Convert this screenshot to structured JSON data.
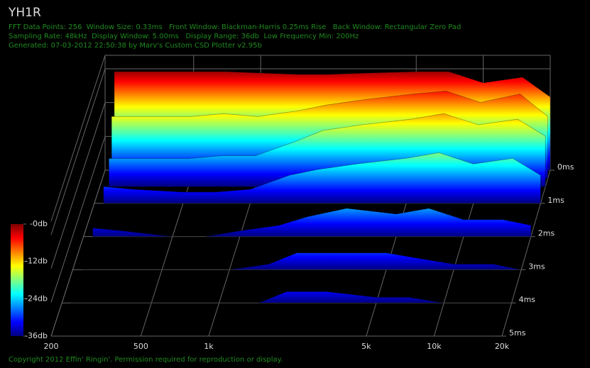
{
  "chart_data": {
    "type": "waterfall",
    "title": "YH1R",
    "info_lines": [
      "FFT Data Points: 256  Window Size: 0.33ms   Front Window: Blackman-Harris 0.25ms Rise   Back Window: Rectangular Zero Pad",
      "Sampling Rate: 48kHz  Display Window: 5.00ms   Display Range: 36db  Low Frequency Min: 200Hz",
      "Generated: 07-03-2012 22:50:38 by Marv's Custom CSD Plotter v2.95b"
    ],
    "footer": "Copyright 2012 Effin' Ringin'. Permission required for reproduction or display.",
    "x": [
      220,
      300,
      500,
      700,
      1000,
      1500,
      2000,
      3000,
      5000,
      7000,
      10000,
      15000,
      20000
    ],
    "xlim": [
      200,
      20000
    ],
    "xscale": "log",
    "xticks": [
      {
        "value": 200,
        "label": "200"
      },
      {
        "value": 500,
        "label": "500"
      },
      {
        "value": 1000,
        "label": "1k"
      },
      {
        "value": 5000,
        "label": "5k"
      },
      {
        "value": 10000,
        "label": "10k"
      },
      {
        "value": 20000,
        "label": "20k"
      }
    ],
    "ylim": [
      0,
      5
    ],
    "yticks": [
      {
        "value": 0,
        "label": "0ms"
      },
      {
        "value": 1,
        "label": "1ms"
      },
      {
        "value": 2,
        "label": "2ms"
      },
      {
        "value": 3,
        "label": "3ms"
      },
      {
        "value": 4,
        "label": "4ms"
      },
      {
        "value": 5,
        "label": "5ms"
      }
    ],
    "zlim": [
      -36,
      0
    ],
    "zticks": [
      {
        "value": 0,
        "label": "-0db"
      },
      {
        "value": -12,
        "label": "-12db"
      },
      {
        "value": -24,
        "label": "-24db"
      },
      {
        "value": -36,
        "label": "-36db"
      }
    ],
    "colormap": "jet",
    "slices": [
      {
        "t": 0,
        "values": [
          -1,
          -1,
          -1,
          -1,
          -1.5,
          -2,
          -2,
          -1.5,
          -1,
          -1,
          -5,
          -3,
          -10
        ]
      },
      {
        "t": 0.25,
        "values": [
          -14,
          -14,
          -14,
          -13,
          -14,
          -12,
          -10,
          -8,
          -6,
          -5,
          -9,
          -6,
          -14
        ]
      },
      {
        "t": 0.5,
        "values": [
          -26,
          -26,
          -26,
          -25,
          -25,
          -20,
          -16,
          -14,
          -12,
          -10,
          -14,
          -12,
          -18
        ]
      },
      {
        "t": 1,
        "values": [
          -30,
          -31,
          -32,
          -32,
          -31,
          -26,
          -24,
          -22,
          -20,
          -18,
          -22,
          -20,
          -26
        ]
      },
      {
        "t": 2,
        "values": [
          -33,
          -34,
          -36,
          -36,
          -34,
          -32,
          -29,
          -26,
          -28,
          -26,
          -30,
          -30,
          -32
        ]
      },
      {
        "t": 3,
        "values": [
          -36,
          -36,
          -36,
          -36,
          -36,
          -34,
          -30,
          -30,
          -30,
          -32,
          -34,
          -34,
          -36
        ]
      },
      {
        "t": 4,
        "values": [
          -36,
          -36,
          -36,
          -36,
          -36,
          -36,
          -32,
          -32,
          -34,
          -34,
          -36,
          -36,
          -36
        ]
      }
    ]
  }
}
